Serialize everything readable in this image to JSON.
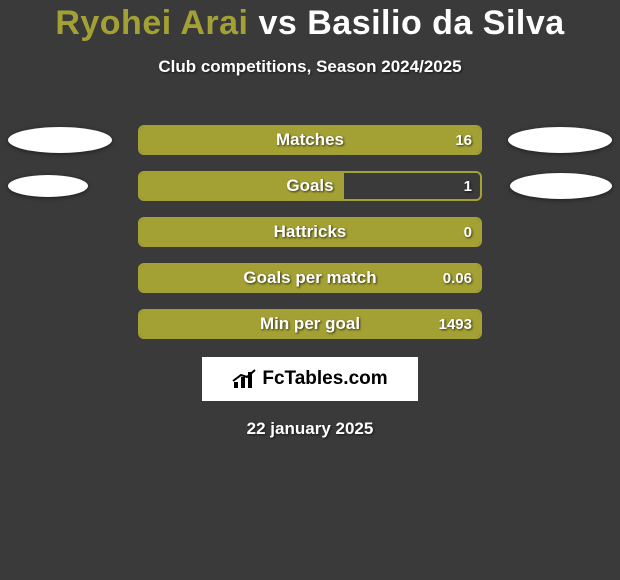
{
  "title": {
    "player1": "Ryohei Arai",
    "vs": "vs",
    "player2": "Basilio da Silva",
    "player1_color": "#a4a134",
    "player2_color": "#ffffff",
    "fontsize": 34
  },
  "subtitle": "Club competitions, Season 2024/2025",
  "chart": {
    "type": "bar",
    "bar_border_color": "#a4a134",
    "bar_fill_color": "#a4a134",
    "background_color": "#3a3a3a",
    "text_color": "#ffffff",
    "blob_left_color": "#ffffff",
    "blob_right_color": "#ffffff",
    "rows": [
      {
        "label": "Matches",
        "value": "16",
        "fill_pct": 100,
        "blob_left_w": 104,
        "blob_left_h": 26,
        "blob_right_w": 104,
        "blob_right_h": 26
      },
      {
        "label": "Goals",
        "value": "1",
        "fill_pct": 60,
        "blob_left_w": 80,
        "blob_left_h": 22,
        "blob_right_w": 102,
        "blob_right_h": 26
      },
      {
        "label": "Hattricks",
        "value": "0",
        "fill_pct": 100,
        "blob_left_w": 0,
        "blob_left_h": 0,
        "blob_right_w": 0,
        "blob_right_h": 0
      },
      {
        "label": "Goals per match",
        "value": "0.06",
        "fill_pct": 100,
        "blob_left_w": 0,
        "blob_left_h": 0,
        "blob_right_w": 0,
        "blob_right_h": 0
      },
      {
        "label": "Min per goal",
        "value": "1493",
        "fill_pct": 100,
        "blob_left_w": 0,
        "blob_left_h": 0,
        "blob_right_w": 0,
        "blob_right_h": 0
      }
    ]
  },
  "logo": {
    "text": "FcTables.com"
  },
  "date": "22 january 2025"
}
